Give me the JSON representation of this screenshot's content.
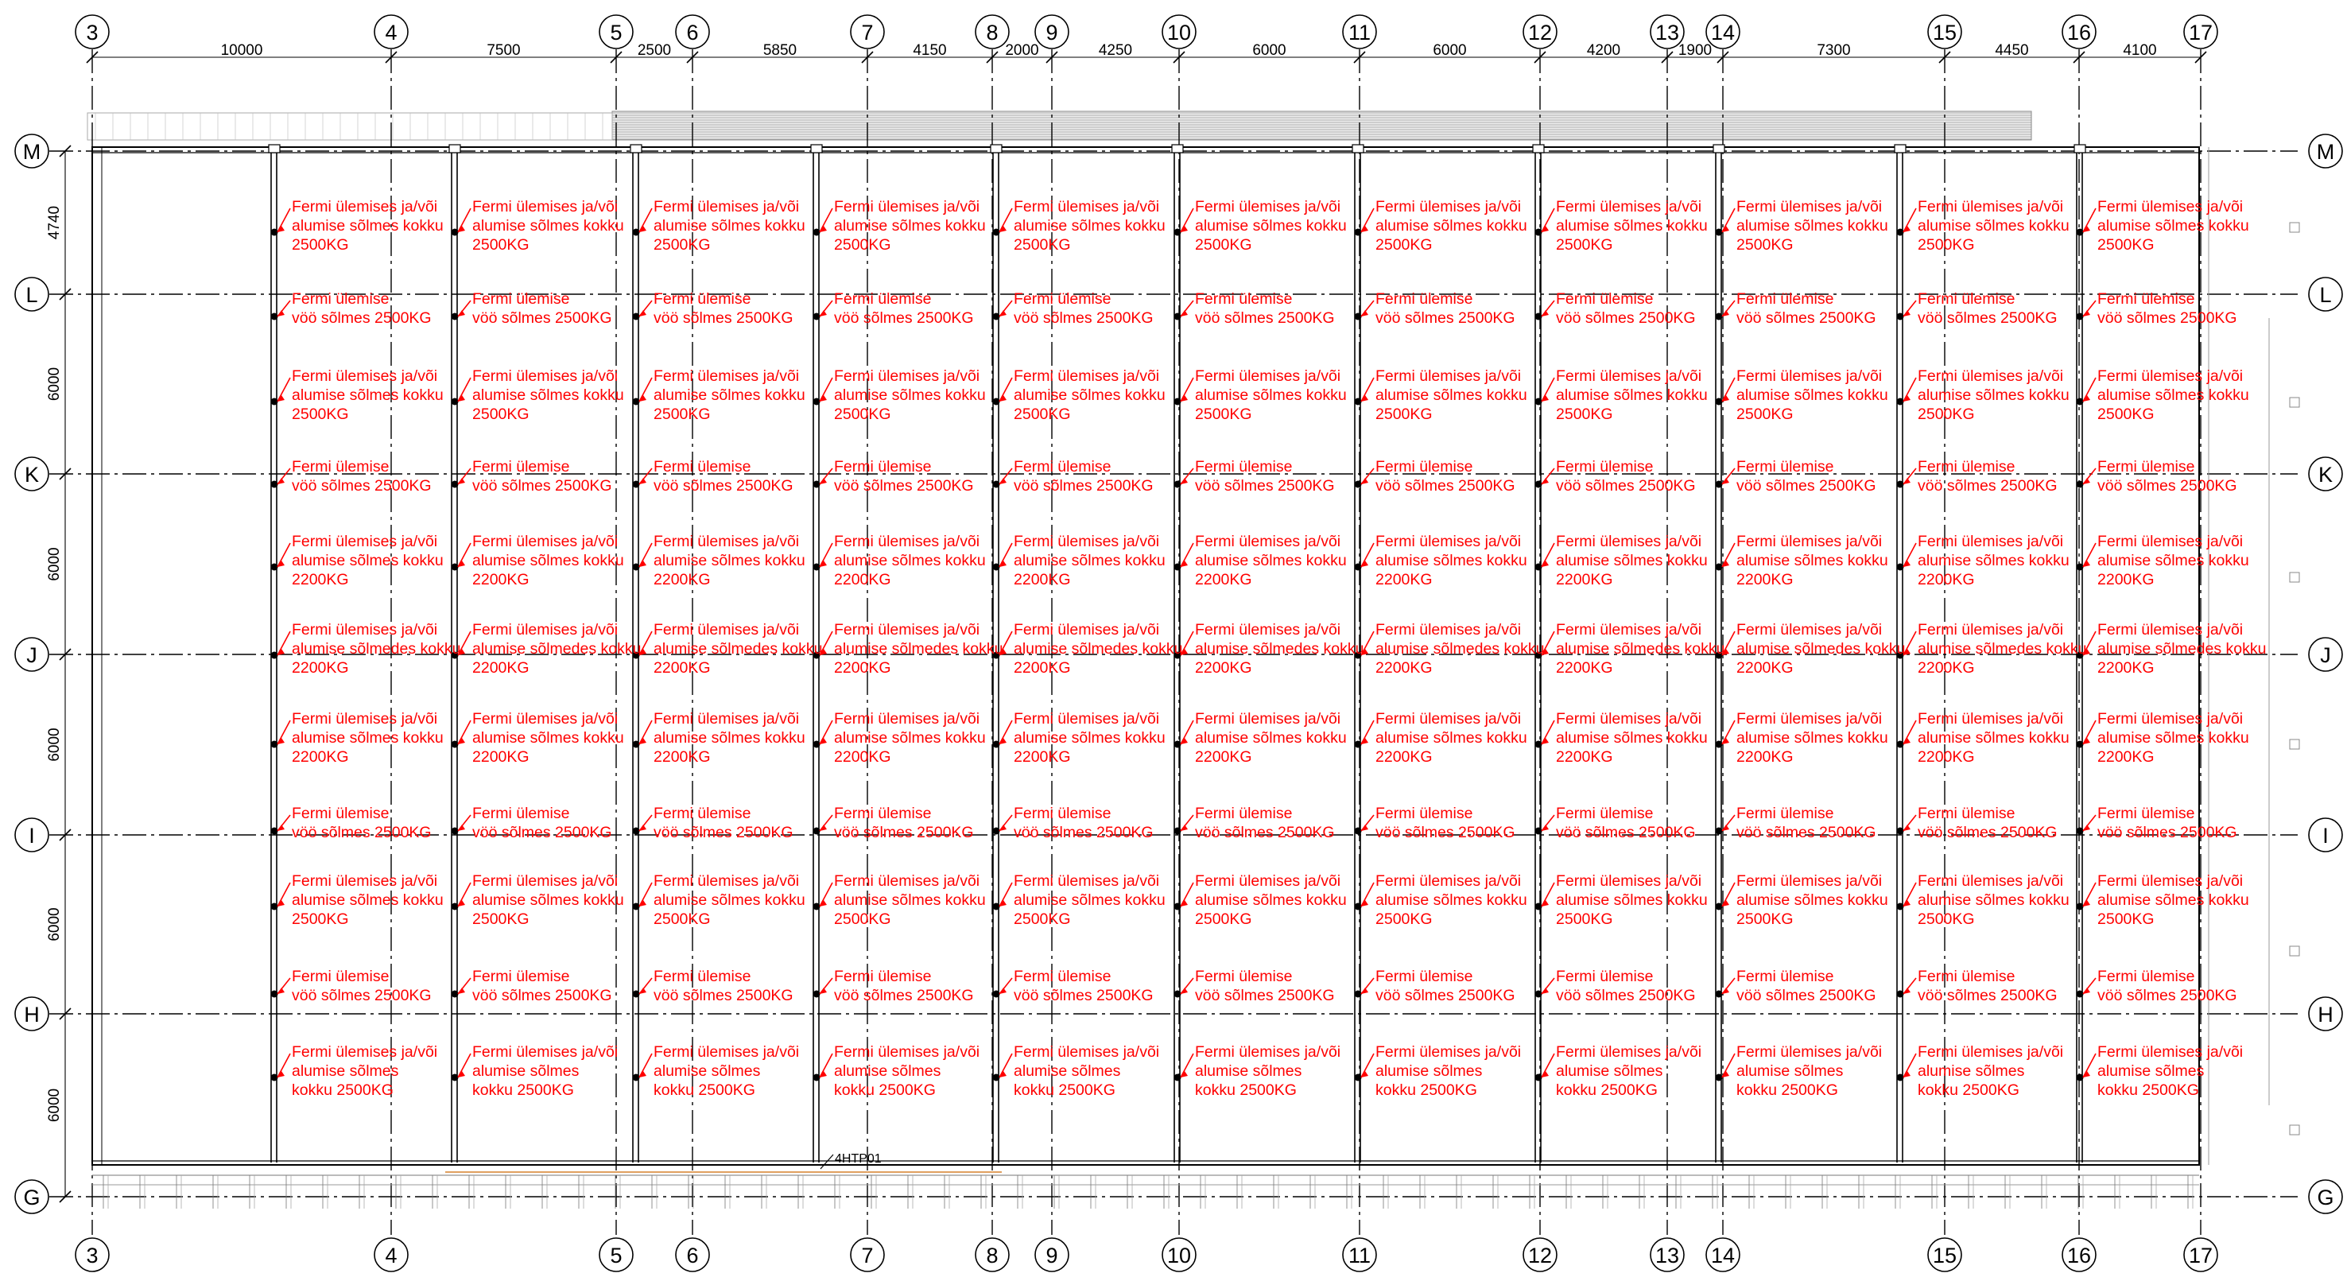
{
  "column_axes": [
    "3",
    "4",
    "5",
    "6",
    "7",
    "8",
    "9",
    "10",
    "11",
    "12",
    "13",
    "14",
    "15",
    "16",
    "17"
  ],
  "row_axes": [
    "M",
    "L",
    "K",
    "J",
    "I",
    "H",
    "G"
  ],
  "column_dimensions": [
    "10000",
    "7500",
    "2500",
    "5850",
    "4150",
    "2000",
    "4250",
    "6000",
    "6000",
    "4200",
    "1900",
    "7300",
    "4450",
    "4100"
  ],
  "row_dimensions": [
    "4740",
    "6000",
    "6000",
    "6000",
    "6000",
    "6000"
  ],
  "load_rows": [
    [
      "Fermi ülemises ja/või",
      "alumise sõlmes kokku",
      "2500KG"
    ],
    [
      "Fermi ülemise",
      "vöö sõlmes 2500KG"
    ],
    [
      "Fermi ülemises  ja/või",
      "alumise sõlmes kokku",
      "2500KG"
    ],
    [
      "Fermi ülemise",
      "vöö sõlmes 2500KG"
    ],
    [
      "Fermi ülemises  ja/või",
      "alumise sõlmes kokku",
      "2200KG"
    ],
    [
      "Fermi ülemises  ja/või",
      "alumise sõlmedes kokku",
      "2200KG"
    ],
    [
      "Fermi ülemises  ja/või",
      "alumise sõlmes kokku",
      "2200KG"
    ],
    [
      "Fermi ülemise",
      "vöö sõlmes 2500KG"
    ],
    [
      "Fermi ülemises ja/või",
      "alumise sõlmes kokku",
      "2500KG"
    ],
    [
      "Fermi ülemise",
      "vöö sõlmes 2500KG"
    ],
    [
      "Fermi ülemises ja/või",
      "alumise sõlmes",
      "kokku 2500KG"
    ]
  ],
  "tag_label": "4HTP01",
  "colors": {
    "annotation": "#ff0000",
    "linework": "#000000"
  }
}
